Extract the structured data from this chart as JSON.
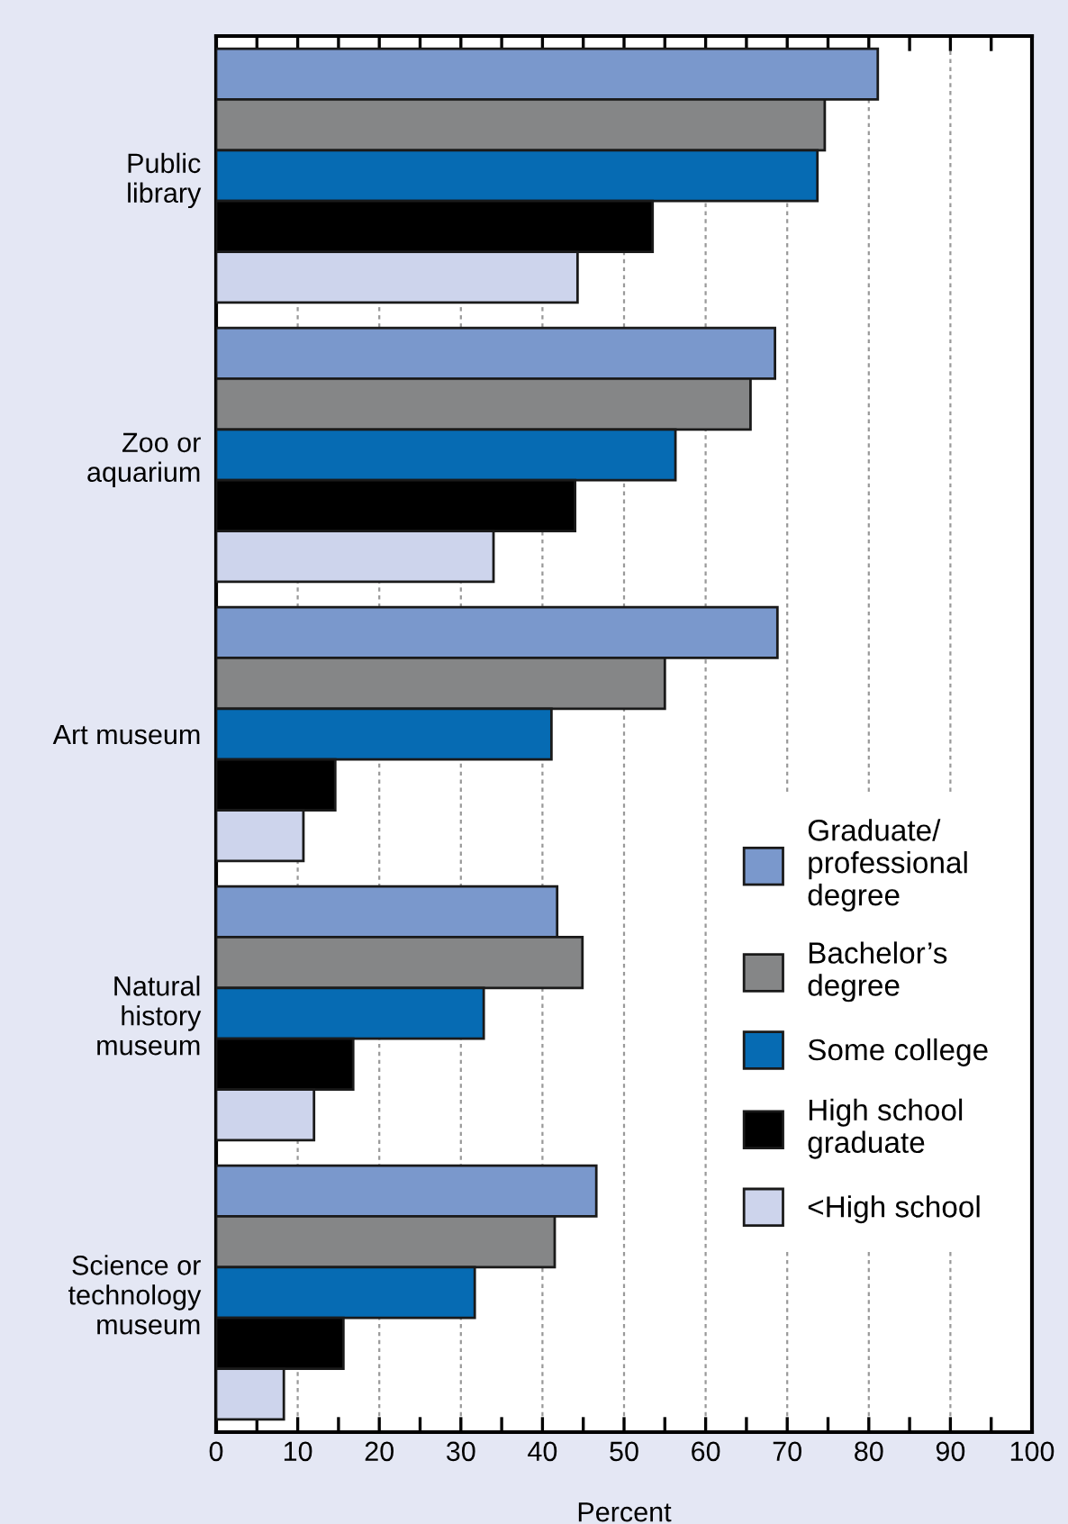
{
  "chart_data": {
    "type": "bar",
    "orientation": "horizontal",
    "xlabel": "Percent",
    "categories": [
      "Public\nlibrary",
      "Zoo or\naquarium",
      "Art museum",
      "Natural\nhistory\nmuseum",
      "Science or\ntechnology\nmuseum"
    ],
    "series": [
      {
        "name": "Graduate/\nprofessional\ndegree",
        "color": "#7a98cc",
        "values": [
          81.1,
          68.5,
          68.8,
          41.8,
          46.6
        ]
      },
      {
        "name": "Bachelor’s\ndegree",
        "color": "#858687",
        "values": [
          74.6,
          65.5,
          55.0,
          44.9,
          41.5
        ]
      },
      {
        "name": "Some college",
        "color": "#066bb3",
        "values": [
          73.7,
          56.3,
          41.1,
          32.8,
          31.7
        ]
      },
      {
        "name": "High school\ngraduate",
        "color": "#000000",
        "values": [
          53.5,
          44.0,
          14.6,
          16.8,
          15.6
        ]
      },
      {
        "name": "<High school",
        "color": "#cdd4ec",
        "values": [
          44.3,
          34.0,
          10.7,
          12.0,
          8.3
        ]
      }
    ],
    "xlim": [
      0,
      100
    ],
    "xticks": [
      0,
      {
        "value": 5,
        "label": null
      },
      10,
      {
        "value": 15,
        "label": null
      },
      20,
      {
        "value": 25,
        "label": null
      },
      30,
      {
        "value": 35,
        "label": null
      },
      40,
      {
        "value": 45,
        "label": null
      },
      50,
      {
        "value": 55,
        "label": null
      },
      60,
      {
        "value": 65,
        "label": null
      },
      70,
      {
        "value": 75,
        "label": null
      },
      80,
      {
        "value": 85,
        "label": null
      },
      90,
      {
        "value": 95,
        "label": null
      },
      100
    ],
    "grid": "x",
    "legend": "bottom right"
  }
}
